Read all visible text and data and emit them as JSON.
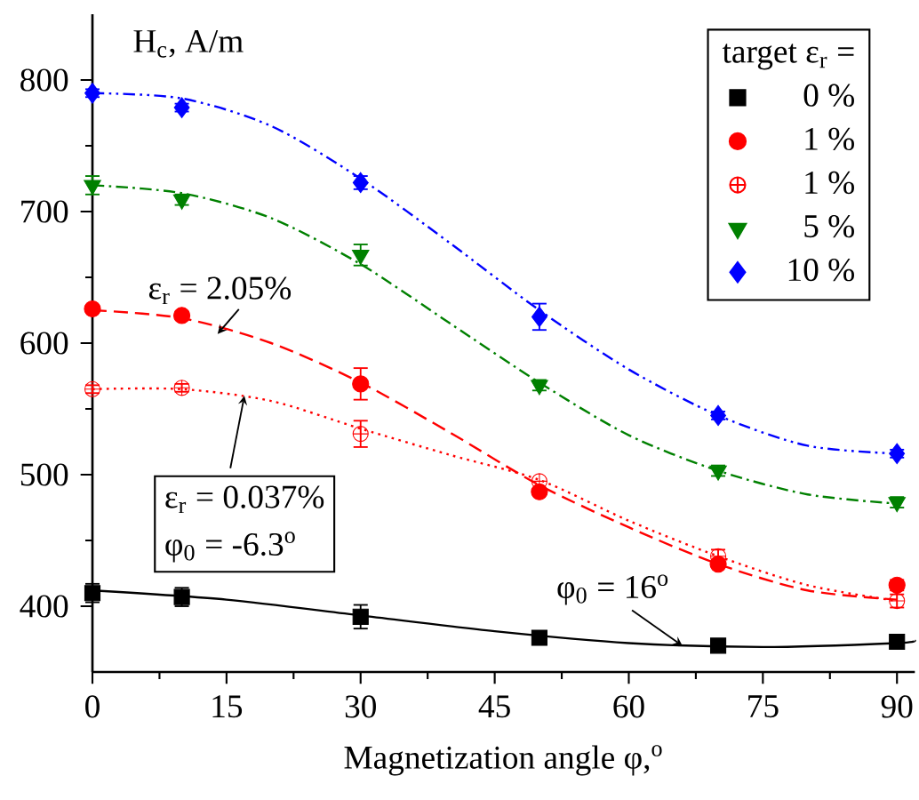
{
  "chart_data": {
    "type": "scatter",
    "xlabel": "Magnetization angle φ,$^{o}$",
    "ylabel": "H$_{c}$, A/m",
    "legend_title": "target ε$_{r}$ =",
    "legend": "top right",
    "xlim": [
      0,
      92
    ],
    "ylim": [
      350,
      850
    ],
    "xticks": [
      0,
      15,
      30,
      45,
      60,
      75,
      90
    ],
    "yticks": [
      400,
      500,
      600,
      700,
      800
    ],
    "series": [
      {
        "name": "0 %",
        "marker": "square",
        "color": "#000000",
        "x": [
          0,
          10,
          30,
          50,
          70,
          90
        ],
        "values": [
          410,
          407,
          392,
          376,
          370,
          373
        ],
        "errors": [
          7,
          7,
          9,
          3,
          3,
          3
        ]
      },
      {
        "name": "1 %",
        "marker": "circle",
        "color": "#ff0000",
        "x": [
          0,
          10,
          30,
          50,
          70,
          90
        ],
        "values": [
          626,
          621,
          569,
          487,
          432,
          416
        ],
        "errors": [
          3,
          3,
          12,
          null,
          null,
          4
        ]
      },
      {
        "name": "1 %",
        "marker": "cross",
        "color": "#ff0000",
        "x": [
          0,
          10,
          30,
          50,
          70,
          90
        ],
        "values": [
          565,
          566,
          531,
          495,
          438,
          404
        ],
        "errors": [
          3,
          3,
          10,
          null,
          5,
          5
        ]
      },
      {
        "name": "5 %",
        "marker": "triangle",
        "color": "#008000",
        "x": [
          0,
          10,
          30,
          50,
          70,
          90
        ],
        "values": [
          720,
          709,
          667,
          568,
          503,
          479
        ],
        "errors": [
          7,
          4,
          8,
          4,
          4,
          4
        ]
      },
      {
        "name": "10 %",
        "marker": "diamond",
        "color": "#0000ff",
        "x": [
          0,
          10,
          30,
          50,
          70,
          90
        ],
        "values": [
          790,
          779,
          722,
          620,
          545,
          516
        ],
        "errors": [
          3,
          3,
          5,
          10,
          3,
          3
        ]
      },
      {
        "type": "line",
        "line_style": "solid",
        "color": "#000000",
        "x": [
          0,
          15,
          30,
          45,
          60,
          75,
          90,
          92
        ],
        "values": [
          412,
          405,
          393,
          381,
          372,
          369,
          372,
          374
        ]
      },
      {
        "type": "line",
        "line_style": "dashed",
        "color": "#ff0000",
        "x": [
          0,
          10,
          20,
          30,
          40,
          50,
          60,
          70,
          80,
          90
        ],
        "values": [
          625,
          619,
          600,
          570,
          532,
          492,
          460,
          432,
          412,
          405
        ]
      },
      {
        "type": "line",
        "line_style": "dotted",
        "color": "#ff0000",
        "x": [
          0,
          10,
          20,
          30,
          40,
          50,
          60,
          70,
          80,
          90
        ],
        "values": [
          565,
          565,
          556,
          535,
          515,
          496,
          465,
          438,
          416,
          404
        ]
      },
      {
        "type": "line",
        "line_style": "dashdot",
        "color": "#008000",
        "x": [
          0,
          10,
          20,
          30,
          40,
          50,
          60,
          70,
          80,
          90
        ],
        "values": [
          720,
          714,
          695,
          660,
          615,
          570,
          530,
          503,
          485,
          478
        ]
      },
      {
        "type": "line",
        "line_style": "dashdotdot",
        "color": "#0000ff",
        "x": [
          0,
          10,
          20,
          30,
          40,
          50,
          60,
          70,
          80,
          90
        ],
        "values": [
          790,
          786,
          765,
          725,
          676,
          625,
          580,
          545,
          522,
          516
        ]
      }
    ],
    "annotations": [
      {
        "text": "ε$_{r}$ = 2.05%",
        "x": 14,
        "y": 607
      },
      {
        "text": "ε$_{r}$ = 0.037%",
        "x": 17,
        "y": 560
      },
      "φ$_{0}$ = -6.3$^{o}$",
      {
        "text": "φ$_{0}$ = 16$^{o}$",
        "x": 66,
        "y": 370
      }
    ]
  }
}
